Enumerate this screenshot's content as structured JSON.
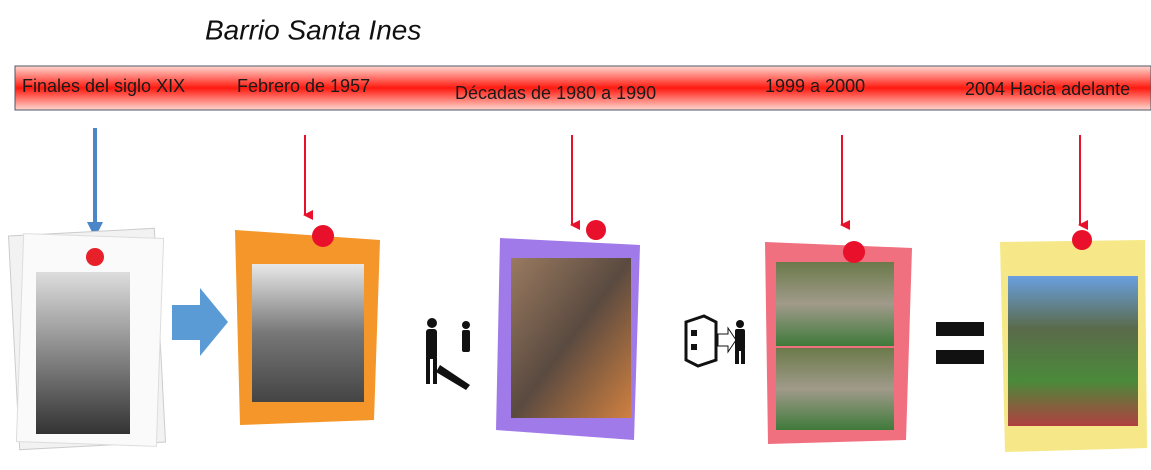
{
  "header": {
    "title": "Barrio Santa Ines"
  },
  "timeline": {
    "periods": [
      {
        "label": "Finales del siglo XIX"
      },
      {
        "label": "Febrero de 1957"
      },
      {
        "label": "Décadas de 1980 a 1990"
      },
      {
        "label": "1999 a 2000"
      },
      {
        "label": "2004  Hacia adelante"
      }
    ]
  }
}
